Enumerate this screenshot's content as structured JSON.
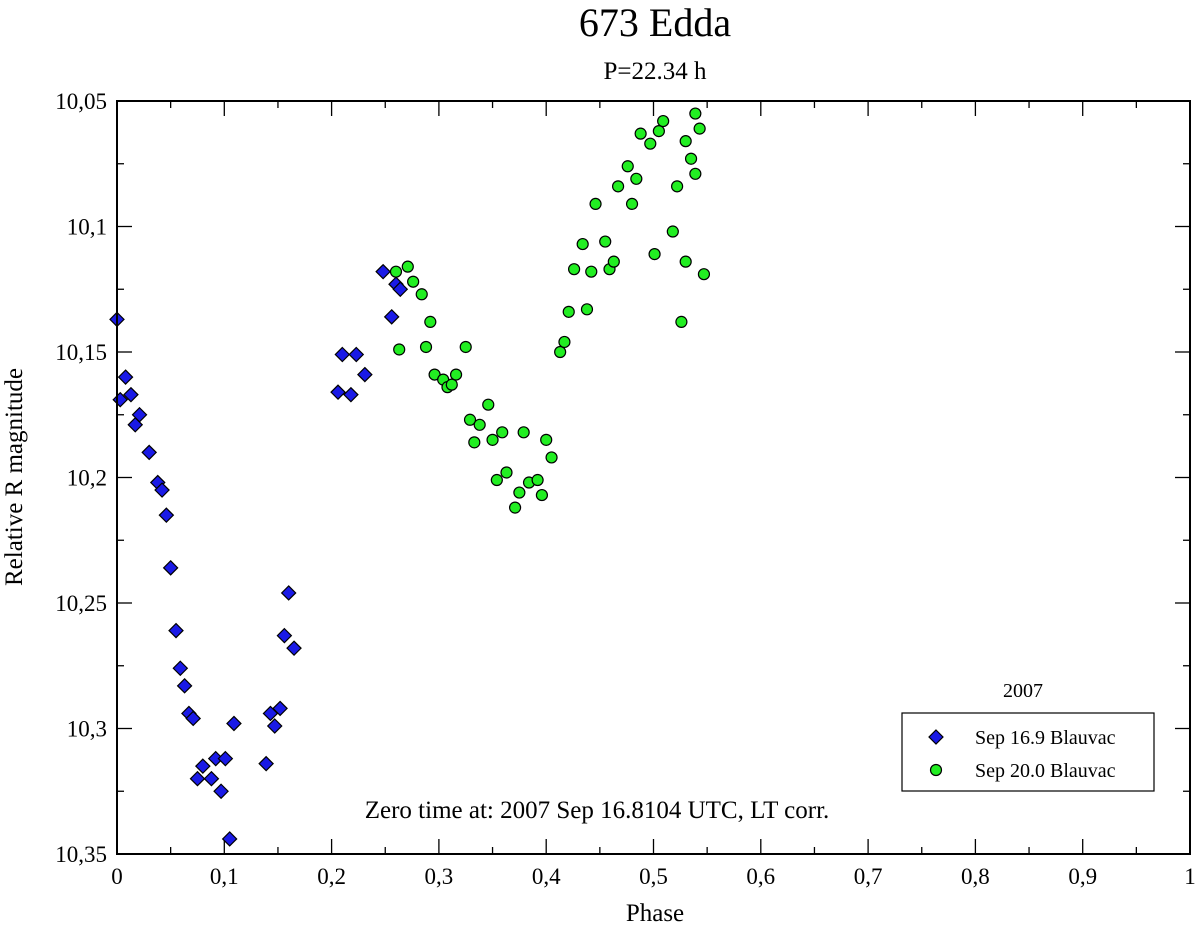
{
  "chart_data": {
    "type": "scatter",
    "title": "673 Edda",
    "subtitle": "P=22.34 h",
    "xlabel": "Phase",
    "ylabel": "Relative R magnitude",
    "xlim": [
      0,
      1
    ],
    "ylim": [
      10.35,
      10.05
    ],
    "y_inverted": true,
    "x_ticks": [
      {
        "value": 0,
        "label": "0"
      },
      {
        "value": 0.1,
        "label": "0,1"
      },
      {
        "value": 0.2,
        "label": "0,2"
      },
      {
        "value": 0.3,
        "label": "0,3"
      },
      {
        "value": 0.4,
        "label": "0,4"
      },
      {
        "value": 0.5,
        "label": "0,5"
      },
      {
        "value": 0.6,
        "label": "0,6"
      },
      {
        "value": 0.7,
        "label": "0,7"
      },
      {
        "value": 0.8,
        "label": "0,8"
      },
      {
        "value": 0.9,
        "label": "0,9"
      },
      {
        "value": 1,
        "label": "1"
      }
    ],
    "y_ticks": [
      {
        "value": 10.05,
        "label": "10,05"
      },
      {
        "value": 10.1,
        "label": "10,1"
      },
      {
        "value": 10.15,
        "label": "10,15"
      },
      {
        "value": 10.2,
        "label": "10,2"
      },
      {
        "value": 10.25,
        "label": "10,25"
      },
      {
        "value": 10.3,
        "label": "10,3"
      },
      {
        "value": 10.35,
        "label": "10,35"
      }
    ],
    "x_minor_step": 0.05,
    "y_minor_step": 0.025,
    "grid": false,
    "legend_position": "bottom-right",
    "legend_title": "2007",
    "annotation": "Zero time at: 2007 Sep 16.8104 UTC, LT corr.",
    "series": [
      {
        "name": "Sep 16.9 Blauvac",
        "marker": "diamond",
        "color": "#1a1ae6",
        "points": [
          [
            0.0,
            10.137
          ],
          [
            0.003,
            10.169
          ],
          [
            0.008,
            10.16
          ],
          [
            0.013,
            10.167
          ],
          [
            0.017,
            10.179
          ],
          [
            0.021,
            10.175
          ],
          [
            0.03,
            10.19
          ],
          [
            0.038,
            10.202
          ],
          [
            0.042,
            10.205
          ],
          [
            0.046,
            10.215
          ],
          [
            0.05,
            10.236
          ],
          [
            0.055,
            10.261
          ],
          [
            0.059,
            10.276
          ],
          [
            0.063,
            10.283
          ],
          [
            0.067,
            10.294
          ],
          [
            0.071,
            10.296
          ],
          [
            0.075,
            10.32
          ],
          [
            0.08,
            10.315
          ],
          [
            0.088,
            10.32
          ],
          [
            0.092,
            10.312
          ],
          [
            0.097,
            10.325
          ],
          [
            0.101,
            10.312
          ],
          [
            0.105,
            10.344
          ],
          [
            0.109,
            10.298
          ],
          [
            0.139,
            10.314
          ],
          [
            0.143,
            10.294
          ],
          [
            0.147,
            10.299
          ],
          [
            0.152,
            10.292
          ],
          [
            0.156,
            10.263
          ],
          [
            0.16,
            10.246
          ],
          [
            0.165,
            10.268
          ],
          [
            0.206,
            10.166
          ],
          [
            0.21,
            10.151
          ],
          [
            0.218,
            10.167
          ],
          [
            0.223,
            10.151
          ],
          [
            0.231,
            10.159
          ],
          [
            0.248,
            10.118
          ],
          [
            0.256,
            10.136
          ],
          [
            0.26,
            10.123
          ],
          [
            0.264,
            10.125
          ]
        ]
      },
      {
        "name": "Sep 20.0 Blauvac",
        "marker": "circle",
        "color": "#22ee22",
        "points": [
          [
            0.26,
            10.118
          ],
          [
            0.263,
            10.149
          ],
          [
            0.271,
            10.116
          ],
          [
            0.276,
            10.122
          ],
          [
            0.284,
            10.127
          ],
          [
            0.288,
            10.148
          ],
          [
            0.292,
            10.138
          ],
          [
            0.296,
            10.159
          ],
          [
            0.304,
            10.161
          ],
          [
            0.308,
            10.164
          ],
          [
            0.312,
            10.163
          ],
          [
            0.316,
            10.159
          ],
          [
            0.325,
            10.148
          ],
          [
            0.329,
            10.177
          ],
          [
            0.333,
            10.186
          ],
          [
            0.338,
            10.179
          ],
          [
            0.346,
            10.171
          ],
          [
            0.35,
            10.185
          ],
          [
            0.354,
            10.201
          ],
          [
            0.359,
            10.182
          ],
          [
            0.363,
            10.198
          ],
          [
            0.371,
            10.212
          ],
          [
            0.375,
            10.206
          ],
          [
            0.379,
            10.182
          ],
          [
            0.384,
            10.202
          ],
          [
            0.392,
            10.201
          ],
          [
            0.396,
            10.207
          ],
          [
            0.4,
            10.185
          ],
          [
            0.405,
            10.192
          ],
          [
            0.413,
            10.15
          ],
          [
            0.417,
            10.146
          ],
          [
            0.421,
            10.134
          ],
          [
            0.426,
            10.117
          ],
          [
            0.434,
            10.107
          ],
          [
            0.438,
            10.133
          ],
          [
            0.442,
            10.118
          ],
          [
            0.446,
            10.091
          ],
          [
            0.455,
            10.106
          ],
          [
            0.459,
            10.117
          ],
          [
            0.463,
            10.114
          ],
          [
            0.467,
            10.084
          ],
          [
            0.476,
            10.076
          ],
          [
            0.48,
            10.091
          ],
          [
            0.484,
            10.081
          ],
          [
            0.488,
            10.063
          ],
          [
            0.497,
            10.067
          ],
          [
            0.501,
            10.111
          ],
          [
            0.505,
            10.062
          ],
          [
            0.509,
            10.058
          ],
          [
            0.518,
            10.102
          ],
          [
            0.522,
            10.084
          ],
          [
            0.526,
            10.138
          ],
          [
            0.53,
            10.066
          ],
          [
            0.53,
            10.114
          ],
          [
            0.535,
            10.073
          ],
          [
            0.539,
            10.079
          ],
          [
            0.539,
            10.055
          ],
          [
            0.543,
            10.061
          ],
          [
            0.547,
            10.119
          ]
        ]
      }
    ]
  }
}
